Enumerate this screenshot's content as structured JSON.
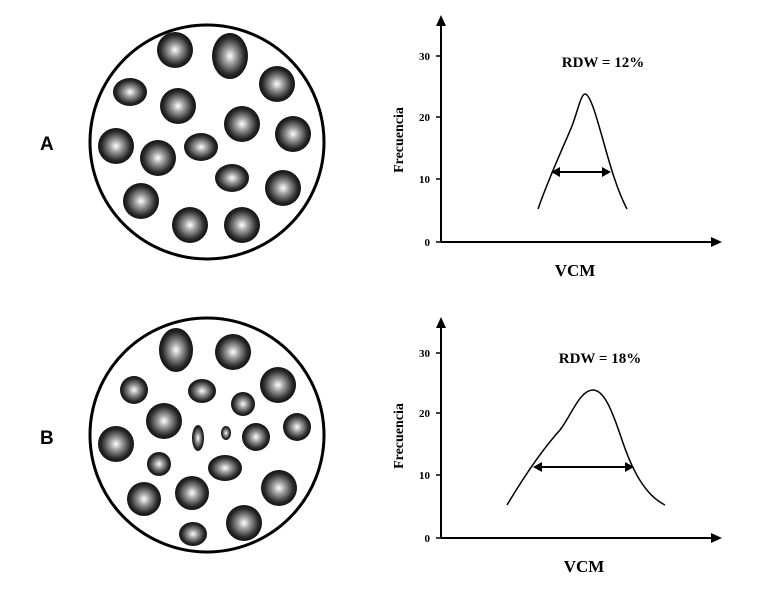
{
  "panels": [
    {
      "letter": "A",
      "chart": {
        "type": "line",
        "y_ticks": [
          "0",
          "10",
          "20",
          "30"
        ],
        "ylabel": "Frecuencia",
        "xlabel": "VCM",
        "annotation": "RDW = 12%",
        "peak_y": 23.5
      }
    },
    {
      "letter": "B",
      "chart": {
        "type": "line",
        "y_ticks": [
          "0",
          "10",
          "20",
          "30"
        ],
        "ylabel": "Frecuencia",
        "xlabel": "VCM",
        "annotation": "RDW = 18%",
        "peak_y": 23.5
      }
    }
  ],
  "chart_data": [
    {
      "type": "line",
      "title": "",
      "annotation": "RDW = 12%",
      "xlabel": "VCM",
      "ylabel": "Frecuencia",
      "ylim": [
        0,
        30
      ],
      "y_ticks": [
        0,
        10,
        20,
        30
      ],
      "grid": false,
      "series": [
        {
          "peak": 23.5,
          "width_level": 11
        }
      ]
    },
    {
      "type": "line",
      "title": "",
      "annotation": "RDW = 18%",
      "xlabel": "VCM",
      "ylabel": "Frecuencia",
      "ylim": [
        0,
        30
      ],
      "y_ticks": [
        0,
        10,
        20,
        30
      ],
      "grid": false,
      "series": [
        {
          "peak": 23.5,
          "width_level": 11
        }
      ]
    }
  ]
}
